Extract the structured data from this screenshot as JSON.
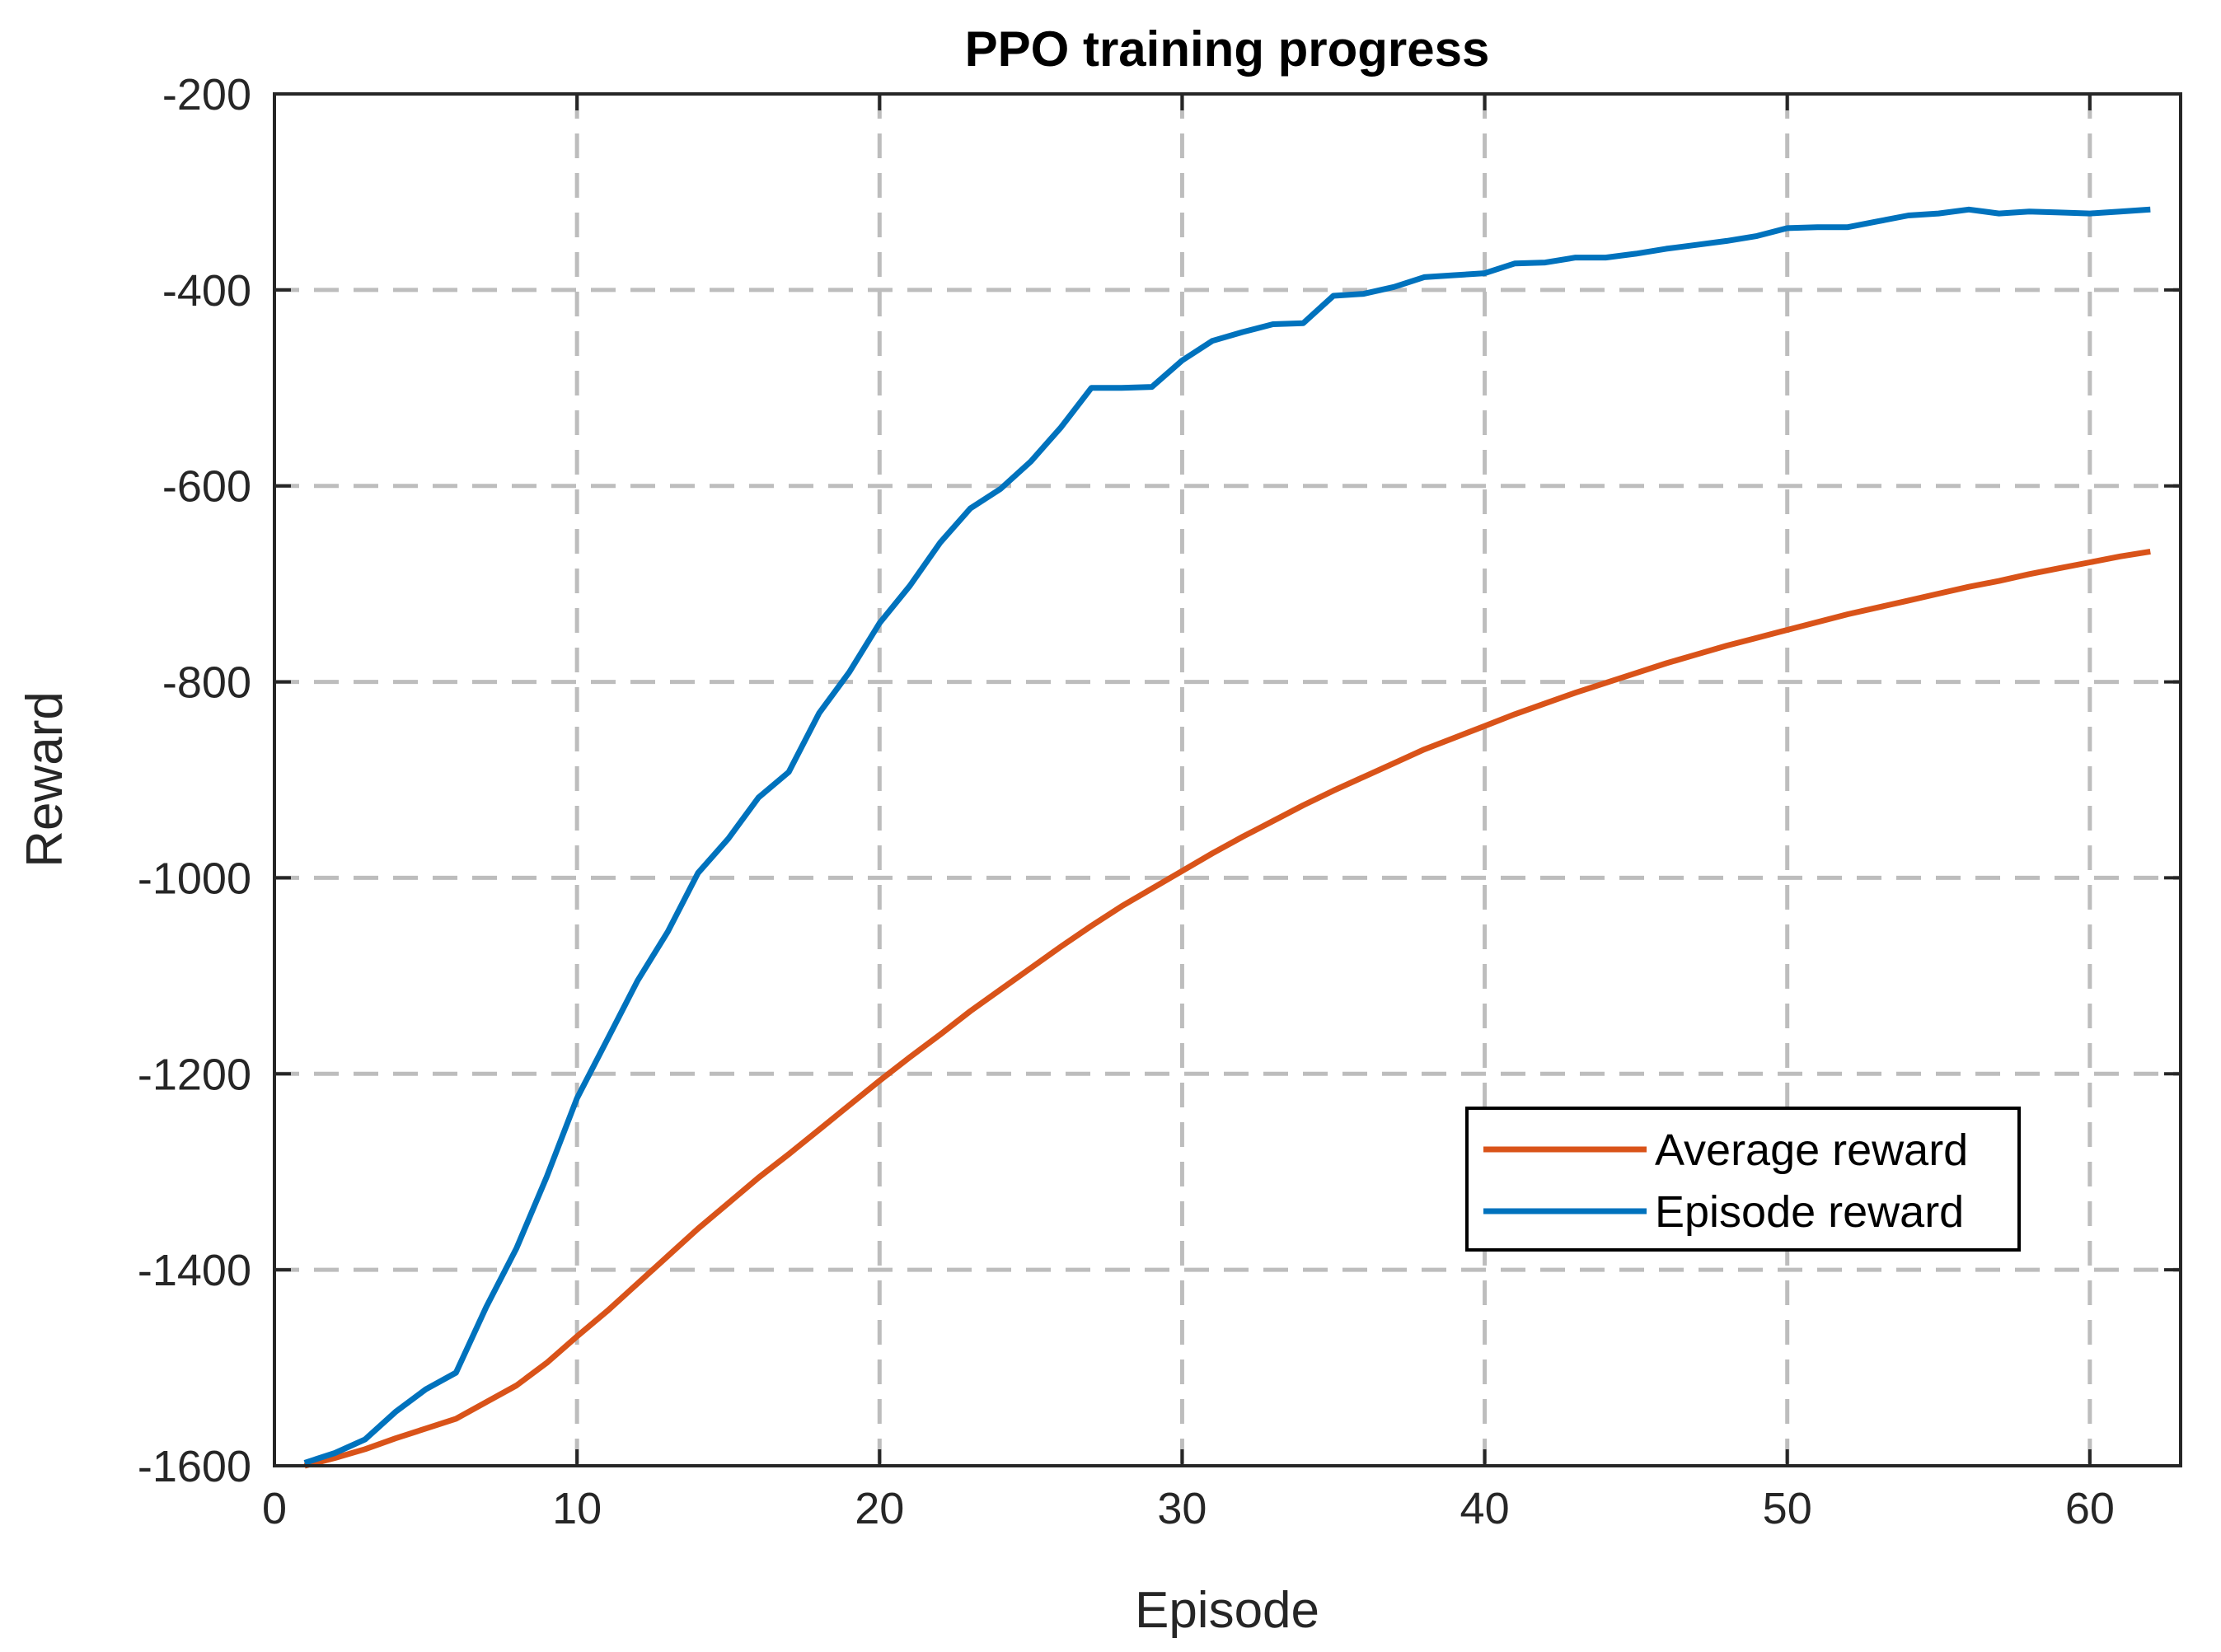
{
  "chart_data": {
    "type": "line",
    "title": "PPO training progress",
    "xlabel": "Episode",
    "ylabel": "Reward",
    "xlim": [
      0,
      63
    ],
    "ylim": [
      -1600,
      -200
    ],
    "xticks": [
      0,
      10,
      20,
      30,
      40,
      50,
      60
    ],
    "yticks": [
      -1600,
      -1400,
      -1200,
      -1000,
      -800,
      -600,
      -400,
      -200
    ],
    "grid": true,
    "legend_position": "bottom-right",
    "series": [
      {
        "name": "Average reward",
        "color": "#D95319",
        "x": [
          1,
          2,
          3,
          4,
          5,
          6,
          7,
          8,
          9,
          10,
          11,
          12,
          13,
          14,
          15,
          16,
          17,
          18,
          19,
          20,
          21,
          22,
          23,
          24,
          25,
          26,
          27,
          28,
          29,
          30,
          31,
          32,
          33,
          34,
          35,
          36,
          37,
          38,
          39,
          40,
          41,
          42,
          43,
          44,
          45,
          46,
          47,
          48,
          49,
          50,
          51,
          52,
          53,
          54,
          55,
          56,
          57,
          58,
          59,
          60,
          61,
          62
        ],
        "values": [
          -1600,
          -1592,
          -1583,
          -1572,
          -1562,
          -1552,
          -1535,
          -1518,
          -1495,
          -1468,
          -1442,
          -1414,
          -1386,
          -1358,
          -1332,
          -1306,
          -1282,
          -1257,
          -1232,
          -1207,
          -1183,
          -1160,
          -1136,
          -1114,
          -1092,
          -1070,
          -1049,
          -1029,
          -1011,
          -993,
          -975,
          -958,
          -942,
          -926,
          -911,
          -897,
          -883,
          -869,
          -857,
          -845,
          -833,
          -822,
          -811,
          -801,
          -791,
          -781,
          -772,
          -763,
          -755,
          -747,
          -739,
          -731,
          -724,
          -717,
          -710,
          -703,
          -697,
          -690,
          -684,
          -678,
          -672,
          -667
        ]
      },
      {
        "name": "Episode reward",
        "color": "#0072BD",
        "x": [
          1,
          2,
          3,
          4,
          5,
          6,
          7,
          8,
          9,
          10,
          11,
          12,
          13,
          14,
          15,
          16,
          17,
          18,
          19,
          20,
          21,
          22,
          23,
          24,
          25,
          26,
          27,
          28,
          29,
          30,
          31,
          32,
          33,
          34,
          35,
          36,
          37,
          38,
          39,
          40,
          41,
          42,
          43,
          44,
          45,
          46,
          47,
          48,
          49,
          50,
          51,
          52,
          53,
          54,
          55,
          56,
          57,
          58,
          59,
          60,
          61,
          62
        ],
        "values": [
          -1597,
          -1587,
          -1573,
          -1545,
          -1522,
          -1505,
          -1438,
          -1378,
          -1305,
          -1225,
          -1165,
          -1105,
          -1055,
          -995,
          -960,
          -918,
          -892,
          -832,
          -790,
          -740,
          -702,
          -658,
          -623,
          -603,
          -575,
          -540,
          -500,
          -500,
          -499,
          -472,
          -452,
          -443,
          -435,
          -434,
          -406,
          -404,
          -397,
          -387,
          -385,
          -383,
          -373,
          -372,
          -367,
          -367,
          -363,
          -358,
          -354,
          -350,
          -345,
          -337,
          -336,
          -336,
          -330,
          -324,
          -322,
          -318,
          -322,
          -320,
          -321,
          -322,
          -320,
          -318
        ]
      }
    ]
  }
}
